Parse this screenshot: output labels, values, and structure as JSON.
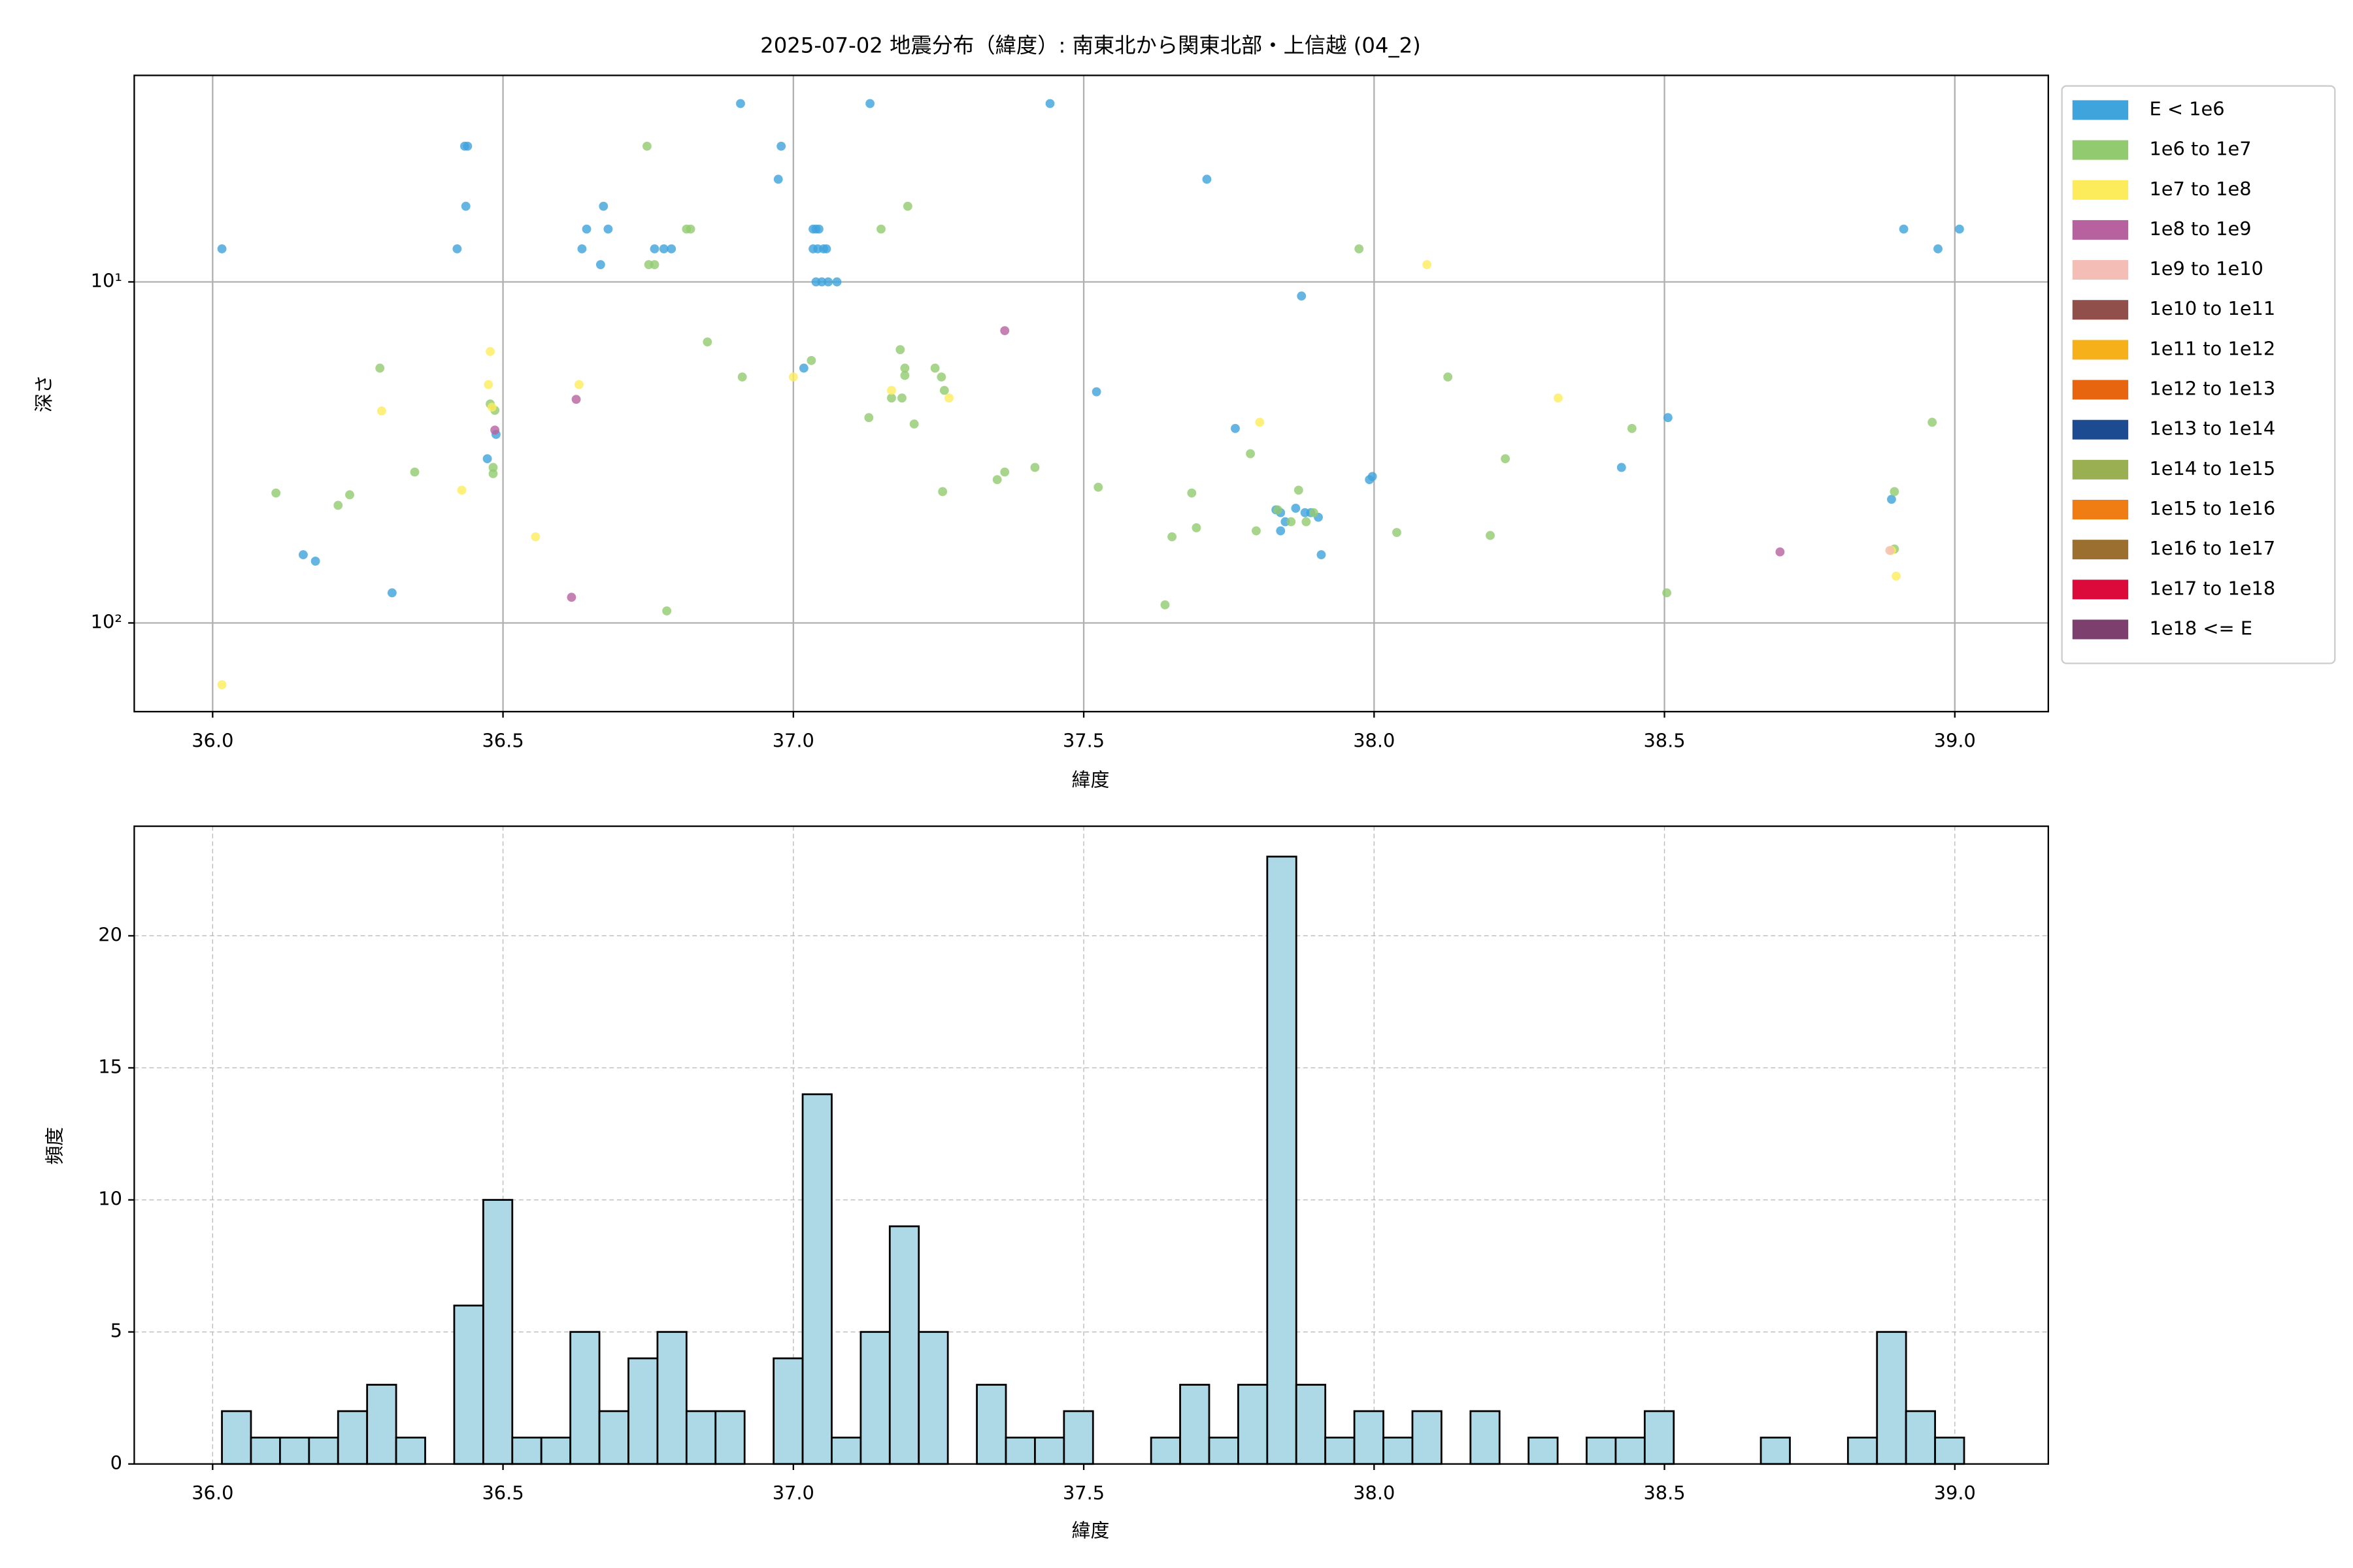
{
  "chart_data": [
    {
      "type": "scatter",
      "title": "2025-07-02 地震分布（緯度）: 南東北から関東北部・上信越 (04_2)",
      "xlabel": "緯度",
      "ylabel": "深さ",
      "xlim": [
        35.865,
        39.161
      ],
      "ylim": [
        2.48,
        182
      ],
      "yscale": "log",
      "y_inverted": true,
      "grid": true,
      "legend": "outside right",
      "xticks": [
        {
          "value": 36,
          "label": "36.0"
        },
        36.5,
        {
          "value": 37,
          "label": "37.0"
        },
        37.5,
        {
          "value": 38,
          "label": "38.0"
        },
        38.5,
        {
          "value": 39,
          "label": "39.0"
        }
      ],
      "yticks": [
        {
          "value": 10,
          "label": "10¹"
        },
        {
          "value": 100,
          "label": "10²"
        }
      ],
      "series": [
        {
          "name": "E < 1e6",
          "color": "#3fa3dc",
          "x": [
            36.016,
            36.156,
            36.177,
            36.309,
            36.421,
            36.434,
            36.439,
            36.436,
            36.473,
            36.488,
            36.636,
            36.644,
            36.668,
            36.673,
            36.681,
            36.761,
            36.777,
            36.79,
            36.909,
            36.979,
            36.974,
            37.034,
            37.039,
            37.044,
            37.034,
            37.042,
            37.052,
            37.057,
            37.039,
            37.049,
            37.06,
            37.075,
            37.018,
            37.132,
            37.442,
            37.522,
            37.712,
            37.761,
            37.875,
            37.831,
            37.839,
            37.847,
            37.865,
            37.881,
            37.891,
            37.904,
            37.839,
            37.909,
            37.992,
            37.997,
            38.426,
            38.506,
            38.891,
            38.912,
            38.971,
            39.008
          ],
          "values": [
            8.0,
            63.1,
            65.9,
            81.6,
            8.0,
            4.0,
            4.0,
            6.0,
            33.0,
            28.0,
            8.0,
            7.0,
            8.9,
            6.0,
            7.0,
            8.0,
            8.0,
            8.0,
            3.0,
            4.0,
            5.0,
            7.0,
            7.0,
            7.0,
            8.0,
            8.0,
            8.0,
            8.0,
            10.0,
            10.0,
            10.0,
            10.0,
            17.9,
            3.0,
            3.0,
            21.0,
            5.0,
            26.9,
            11.0,
            46.6,
            47.5,
            50.5,
            46.1,
            47.5,
            47.5,
            49.0,
            53.7,
            63.1,
            38.0,
            37.2,
            35.0,
            25.0,
            43.4,
            7.0,
            8.0,
            7.0
          ]
        },
        {
          "name": "1e6 to 1e7",
          "color": "#92ca6f",
          "x": [
            36.109,
            36.216,
            36.236,
            36.288,
            36.348,
            36.478,
            36.486,
            36.483,
            36.483,
            36.748,
            36.751,
            36.761,
            36.816,
            36.823,
            36.852,
            36.782,
            36.912,
            37.031,
            37.13,
            37.151,
            37.169,
            37.184,
            37.192,
            37.192,
            37.187,
            37.197,
            37.208,
            37.244,
            37.255,
            37.26,
            37.257,
            37.351,
            37.364,
            37.416,
            37.525,
            37.652,
            37.686,
            37.694,
            37.787,
            37.797,
            37.834,
            37.857,
            37.87,
            37.883,
            37.896,
            37.64,
            37.974,
            38.039,
            38.127,
            38.2,
            38.226,
            38.444,
            38.504,
            38.896,
            38.896,
            38.961
          ],
          "values": [
            41.6,
            45.2,
            42.1,
            17.9,
            36.1,
            22.8,
            23.8,
            36.5,
            35.0,
            4.0,
            8.9,
            8.9,
            7.0,
            7.0,
            15.0,
            92.2,
            19.0,
            17.0,
            25.0,
            7.0,
            21.9,
            15.8,
            17.9,
            18.8,
            21.9,
            6.0,
            26.1,
            17.9,
            19.0,
            20.8,
            41.2,
            38.0,
            36.1,
            35.0,
            40.0,
            55.9,
            41.6,
            52.6,
            31.9,
            53.7,
            46.6,
            50.5,
            40.8,
            50.5,
            47.5,
            88.5,
            8.0,
            54.3,
            19.0,
            55.4,
            33.0,
            26.9,
            81.6,
            41.2,
            60.7,
            25.8
          ]
        },
        {
          "name": "1e7 to 1e8",
          "color": "#fcec5c",
          "x": [
            36.016,
            36.291,
            36.429,
            36.475,
            36.478,
            36.481,
            36.556,
            36.631,
            37.0,
            37.169,
            37.268,
            37.803,
            38.091,
            38.317,
            38.899,
            38.891
          ],
          "values": [
            151.8,
            23.9,
            40.8,
            20.0,
            16.0,
            23.3,
            55.9,
            20.0,
            19.0,
            20.8,
            21.9,
            25.8,
            8.9,
            21.9,
            72.9,
            61.3
          ]
        },
        {
          "name": "1e8 to 1e9",
          "color": "#b7619f",
          "x": [
            36.486,
            36.626,
            36.618,
            37.364,
            38.699
          ],
          "values": [
            27.2,
            22.1,
            84.1,
            13.9,
            61.9
          ]
        },
        {
          "name": "1e9 to 1e10",
          "color": "#f4bdb6",
          "x": [
            38.888
          ],
          "values": [
            61.3
          ]
        },
        {
          "name": "1e10 to 1e11",
          "color": "#904f4b",
          "x": [],
          "values": []
        },
        {
          "name": "1e11 to 1e12",
          "color": "#f5b01a",
          "x": [],
          "values": []
        },
        {
          "name": "1e12 to 1e13",
          "color": "#e8650f",
          "x": [],
          "values": []
        },
        {
          "name": "1e13 to 1e14",
          "color": "#1c4b91",
          "x": [],
          "values": []
        },
        {
          "name": "1e14 to 1e15",
          "color": "#9aae52",
          "x": [],
          "values": []
        },
        {
          "name": "1e15 to 1e16",
          "color": "#ef7d13",
          "x": [],
          "values": []
        },
        {
          "name": "1e16 to 1e17",
          "color": "#9a6f30",
          "x": [],
          "values": []
        },
        {
          "name": "1e17 to 1e18",
          "color": "#dc0a3a",
          "x": [],
          "values": []
        },
        {
          "name": "1e18 <= E",
          "color": "#7c3f6e",
          "x": [],
          "values": []
        }
      ]
    },
    {
      "type": "histogram",
      "xlabel": "緯度",
      "ylabel": "頻度",
      "color": "#add8e6",
      "edgecolor": "#000000",
      "grid": true,
      "xlim": [
        35.865,
        39.161
      ],
      "ylim": [
        0,
        24.15
      ],
      "xticks": [
        {
          "value": 36,
          "label": "36.0"
        },
        36.5,
        {
          "value": 37,
          "label": "37.0"
        },
        37.5,
        {
          "value": 38,
          "label": "38.0"
        },
        38.5,
        {
          "value": 39,
          "label": "39.0"
        }
      ],
      "yticks": [
        0,
        5,
        10,
        15,
        20
      ],
      "bins": [
        36.016,
        36.066,
        36.116,
        36.166,
        36.216,
        36.266,
        36.316,
        36.366,
        36.416,
        36.466,
        36.516,
        36.566,
        36.616,
        36.666,
        36.716,
        36.766,
        36.816,
        36.866,
        36.916,
        36.966,
        37.016,
        37.066,
        37.116,
        37.166,
        37.216,
        37.266,
        37.316,
        37.366,
        37.416,
        37.466,
        37.516,
        37.566,
        37.616,
        37.666,
        37.716,
        37.766,
        37.816,
        37.866,
        37.916,
        37.966,
        38.016,
        38.066,
        38.116,
        38.166,
        38.216,
        38.266,
        38.316,
        38.366,
        38.416,
        38.466,
        38.516,
        38.566,
        38.616,
        38.666,
        38.716,
        38.766,
        38.816,
        38.866,
        38.916,
        38.966,
        39.016
      ],
      "values": [
        2,
        1,
        1,
        1,
        2,
        3,
        1,
        0,
        6,
        10,
        1,
        1,
        5,
        2,
        4,
        5,
        2,
        2,
        0,
        4,
        14,
        1,
        5,
        9,
        5,
        0,
        3,
        1,
        1,
        2,
        0,
        0,
        1,
        3,
        1,
        3,
        23,
        3,
        1,
        2,
        1,
        2,
        0,
        2,
        0,
        1,
        0,
        1,
        1,
        2,
        0,
        0,
        0,
        1,
        0,
        0,
        1,
        5,
        2,
        1
      ]
    }
  ]
}
